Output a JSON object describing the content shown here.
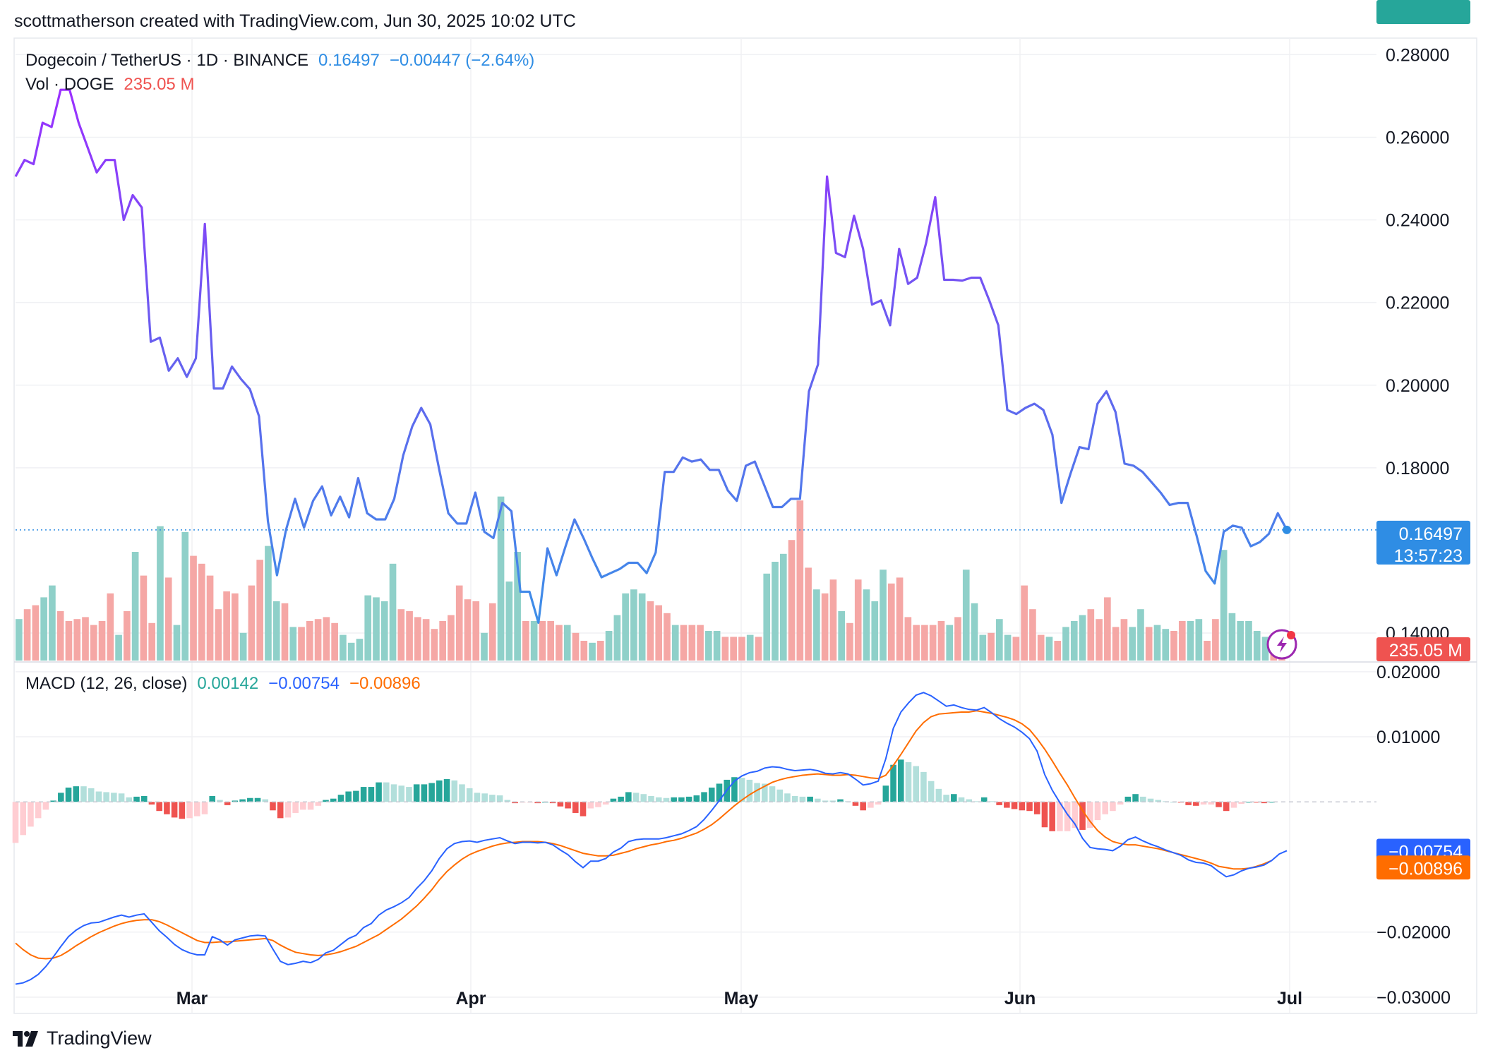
{
  "attribution": "scottmatherson created with TradingView.com, Jun 30, 2025 10:02 UTC",
  "brand": "TradingView",
  "price_legend": {
    "symbol": "Dogecoin / TetherUS · 1D · BINANCE",
    "last": "0.16497",
    "change": "−0.00447 (−2.64%)"
  },
  "volume_legend": {
    "label": "Vol · DOGE",
    "value": "235.05 M"
  },
  "macd_legend": {
    "label": "MACD (12, 26, close)",
    "hist": "0.00142",
    "macd": "−0.00754",
    "signal": "−0.00896"
  },
  "badges": {
    "price": "0.16497",
    "countdown": "13:57:23",
    "volume": "235.05 M",
    "hist": "0.00142",
    "macd": "−0.00754",
    "signal": "−0.00896"
  },
  "colors": {
    "price_high": "#9b30ff",
    "price_low": "#3d8fe8",
    "up": "#26a69a",
    "down": "#ef5350",
    "macd": "#2962ff",
    "signal": "#ff6d00",
    "badge_blue": "#2f8de4",
    "badge_red": "#ef5350"
  },
  "chart_data": {
    "type": "line",
    "title": "Dogecoin / TetherUS · 1D · BINANCE",
    "x_ticks": [
      "Mar",
      "Apr",
      "May",
      "Jun",
      "Jul"
    ],
    "price": {
      "y_ticks": [
        "0.28000",
        "0.26000",
        "0.24000",
        "0.22000",
        "0.20000",
        "0.18000",
        "0.14000"
      ],
      "ylim": [
        0.133,
        0.284
      ],
      "values": [
        0.2505,
        0.2545,
        0.2535,
        0.2635,
        0.2625,
        0.2715,
        0.2715,
        0.2635,
        0.2575,
        0.2515,
        0.2545,
        0.2545,
        0.24,
        0.246,
        0.243,
        0.2105,
        0.2115,
        0.2035,
        0.2065,
        0.202,
        0.2065,
        0.239,
        0.1992,
        0.1992,
        0.2045,
        0.2015,
        0.199,
        0.1925,
        0.167,
        0.154,
        0.165,
        0.1725,
        0.1655,
        0.172,
        0.1755,
        0.1685,
        0.173,
        0.168,
        0.1775,
        0.169,
        0.1675,
        0.1675,
        0.1725,
        0.183,
        0.19,
        0.1945,
        0.1905,
        0.1795,
        0.169,
        0.1665,
        0.1665,
        0.174,
        0.1645,
        0.163,
        0.1715,
        0.1695,
        0.15,
        0.15,
        0.1425,
        0.1605,
        0.154,
        0.161,
        0.1675,
        0.163,
        0.158,
        0.1535,
        0.1545,
        0.1555,
        0.157,
        0.157,
        0.1545,
        0.1595,
        0.179,
        0.179,
        0.1825,
        0.1815,
        0.182,
        0.1795,
        0.1795,
        0.1745,
        0.172,
        0.1805,
        0.1815,
        0.176,
        0.1705,
        0.1705,
        0.1725,
        0.1725,
        0.1985,
        0.205,
        0.2505,
        0.232,
        0.231,
        0.241,
        0.233,
        0.2195,
        0.2205,
        0.2145,
        0.233,
        0.2245,
        0.226,
        0.2345,
        0.2455,
        0.2255,
        0.2255,
        0.2253,
        0.226,
        0.226,
        0.2205,
        0.2145,
        0.194,
        0.193,
        0.1945,
        0.1955,
        0.194,
        0.188,
        0.1715,
        0.1785,
        0.185,
        0.1845,
        0.1955,
        0.1985,
        0.1935,
        0.181,
        0.1805,
        0.179,
        0.1765,
        0.174,
        0.171,
        0.1715,
        0.1715,
        0.1635,
        0.155,
        0.152,
        0.1645,
        0.166,
        0.1655,
        0.161,
        0.162,
        0.164,
        0.169,
        0.165
      ],
      "last": 0.16497
    },
    "volume": {
      "values": [
        2.1,
        2.6,
        2.8,
        3.2,
        3.8,
        2.5,
        2.0,
        2.1,
        2.2,
        1.8,
        2.0,
        3.4,
        1.3,
        2.5,
        5.5,
        4.3,
        1.9,
        6.8,
        4.2,
        1.8,
        6.5,
        5.3,
        4.9,
        4.3,
        2.6,
        3.5,
        3.4,
        1.4,
        3.8,
        5.1,
        5.8,
        3.0,
        2.9,
        1.7,
        1.7,
        2.0,
        2.1,
        2.2,
        1.9,
        1.3,
        0.9,
        1.1,
        3.3,
        3.2,
        3.0,
        4.9,
        2.6,
        2.5,
        2.2,
        2.1,
        1.6,
        2.0,
        2.3,
        3.8,
        3.1,
        3.0,
        1.4,
        2.9,
        8.3,
        4.0,
        5.5,
        2.0,
        2.0,
        2.0,
        2.0,
        1.8,
        1.8,
        1.4,
        1.0,
        0.9,
        1.0,
        1.5,
        2.3,
        3.4,
        3.6,
        3.4,
        3.0,
        2.8,
        2.4,
        1.8,
        1.8,
        1.8,
        1.8,
        1.5,
        1.5,
        1.2,
        1.2,
        1.2,
        1.3,
        1.2,
        4.4,
        5.0,
        5.4,
        6.1,
        8.1,
        4.7,
        3.6,
        3.4,
        4.1,
        2.5,
        1.9,
        4.1,
        3.6,
        3.0,
        4.6,
        3.9,
        4.2,
        2.2,
        1.8,
        1.8,
        1.8,
        2.0,
        1.8,
        2.2,
        4.6,
        2.9,
        1.3,
        1.4,
        2.1,
        1.3,
        1.2,
        3.8,
        2.6,
        1.3,
        1.2,
        1.0,
        1.7,
        2.0,
        2.3,
        2.6,
        2.1,
        3.2,
        1.7,
        2.1,
        1.7,
        2.6,
        1.7,
        1.8,
        1.6,
        1.5,
        2.0,
        2.0,
        2.1,
        1.0,
        2.1,
        5.6,
        2.4,
        2.0,
        2.0,
        1.5,
        1.2,
        0.9,
        0.6
      ],
      "up": [
        1,
        0,
        0,
        1,
        1,
        0,
        0,
        0,
        0,
        0,
        0,
        0,
        1,
        0,
        1,
        0,
        0,
        1,
        0,
        1,
        1,
        0,
        0,
        0,
        0,
        0,
        0,
        1,
        0,
        0,
        1,
        1,
        0,
        1,
        0,
        0,
        0,
        0,
        0,
        1,
        1,
        1,
        1,
        1,
        1,
        1,
        0,
        0,
        0,
        0,
        0,
        0,
        0,
        0,
        0,
        0,
        1,
        0,
        1,
        1,
        1,
        0,
        1,
        0,
        0,
        0,
        1,
        0,
        0,
        1,
        0,
        1,
        1,
        1,
        1,
        1,
        0,
        0,
        0,
        1,
        0,
        0,
        0,
        1,
        1,
        0,
        0,
        0,
        1,
        0,
        1,
        1,
        1,
        0,
        0,
        0,
        1,
        0,
        0,
        1,
        0,
        0,
        1,
        1,
        1,
        0,
        0,
        0,
        0,
        0,
        0,
        0,
        1,
        0,
        1,
        1,
        1,
        0,
        1,
        1,
        0,
        0,
        0,
        0,
        1,
        0,
        1,
        1,
        1,
        0,
        0,
        0,
        0,
        0,
        1,
        1,
        0,
        1,
        1,
        0,
        0,
        1,
        1,
        0,
        0,
        1,
        1,
        1,
        1,
        1,
        1,
        0
      ],
      "unit": "M"
    },
    "macd": {
      "y_ticks": [
        "0.02000",
        "0.01000",
        "−0.02000",
        "−0.03000"
      ],
      "ylim": [
        -0.0325,
        0.0215
      ],
      "macd": [
        -0.028,
        -0.0278,
        -0.0273,
        -0.0265,
        -0.0253,
        -0.0238,
        -0.0222,
        -0.0207,
        -0.0197,
        -0.019,
        -0.0186,
        -0.0185,
        -0.0181,
        -0.0177,
        -0.0174,
        -0.0177,
        -0.0174,
        -0.0172,
        -0.0185,
        -0.0198,
        -0.0208,
        -0.0219,
        -0.0227,
        -0.0232,
        -0.0235,
        -0.0235,
        -0.0207,
        -0.0212,
        -0.022,
        -0.0212,
        -0.0209,
        -0.0206,
        -0.0205,
        -0.0206,
        -0.0226,
        -0.0245,
        -0.025,
        -0.0248,
        -0.0245,
        -0.0247,
        -0.0242,
        -0.0232,
        -0.0228,
        -0.0219,
        -0.021,
        -0.0205,
        -0.0193,
        -0.0187,
        -0.0174,
        -0.0166,
        -0.0161,
        -0.0155,
        -0.0147,
        -0.0133,
        -0.0121,
        -0.0106,
        -0.0087,
        -0.0072,
        -0.0064,
        -0.0061,
        -0.006,
        -0.0062,
        -0.0059,
        -0.0057,
        -0.0055,
        -0.006,
        -0.0064,
        -0.0062,
        -0.0062,
        -0.0063,
        -0.0062,
        -0.0066,
        -0.0074,
        -0.0081,
        -0.0092,
        -0.0101,
        -0.0091,
        -0.0091,
        -0.0087,
        -0.0077,
        -0.0071,
        -0.0061,
        -0.0058,
        -0.0057,
        -0.0057,
        -0.0057,
        -0.0055,
        -0.0052,
        -0.0049,
        -0.0044,
        -0.0038,
        -0.0027,
        -0.0013,
        0.0002,
        0.0018,
        0.0032,
        0.004,
        0.0045,
        0.0047,
        0.0052,
        0.0054,
        0.0053,
        0.005,
        0.0048,
        0.0049,
        0.005,
        0.0048,
        0.0044,
        0.0043,
        0.0045,
        0.0043,
        0.0035,
        0.0026,
        0.0028,
        0.0032,
        0.0066,
        0.0113,
        0.0138,
        0.0152,
        0.0164,
        0.0168,
        0.0163,
        0.0155,
        0.0147,
        0.0149,
        0.0145,
        0.0142,
        0.0141,
        0.0145,
        0.0137,
        0.0128,
        0.0121,
        0.0115,
        0.0107,
        0.0097,
        0.0078,
        0.0042,
        0.0018,
        -0.0001,
        -0.0019,
        -0.0034,
        -0.0056,
        -0.007,
        -0.0072,
        -0.0073,
        -0.0075,
        -0.0068,
        -0.0058,
        -0.0054,
        -0.006,
        -0.0065,
        -0.0069,
        -0.0074,
        -0.0078,
        -0.0082,
        -0.0089,
        -0.0093,
        -0.0094,
        -0.0098,
        -0.0107,
        -0.0115,
        -0.0112,
        -0.0106,
        -0.0102,
        -0.01,
        -0.0097,
        -0.009,
        -0.008,
        -0.0075
      ],
      "signal": [
        -0.0217,
        -0.0227,
        -0.0235,
        -0.024,
        -0.0241,
        -0.024,
        -0.0236,
        -0.0229,
        -0.0221,
        -0.0214,
        -0.0207,
        -0.0201,
        -0.0196,
        -0.0191,
        -0.0187,
        -0.0184,
        -0.0182,
        -0.0181,
        -0.0181,
        -0.0184,
        -0.0189,
        -0.0195,
        -0.0201,
        -0.0207,
        -0.0213,
        -0.0216,
        -0.0216,
        -0.0215,
        -0.0215,
        -0.0214,
        -0.0213,
        -0.0212,
        -0.0211,
        -0.021,
        -0.0213,
        -0.022,
        -0.0226,
        -0.0231,
        -0.0233,
        -0.0235,
        -0.0236,
        -0.0235,
        -0.0233,
        -0.023,
        -0.0226,
        -0.0222,
        -0.0216,
        -0.021,
        -0.0204,
        -0.0196,
        -0.0188,
        -0.018,
        -0.017,
        -0.016,
        -0.0148,
        -0.0135,
        -0.012,
        -0.0107,
        -0.0097,
        -0.0088,
        -0.0081,
        -0.0076,
        -0.0072,
        -0.0068,
        -0.0065,
        -0.0063,
        -0.0062,
        -0.0061,
        -0.0061,
        -0.0061,
        -0.0062,
        -0.0064,
        -0.0067,
        -0.0071,
        -0.0075,
        -0.0079,
        -0.0081,
        -0.0083,
        -0.0083,
        -0.0082,
        -0.0079,
        -0.0076,
        -0.0072,
        -0.0069,
        -0.0066,
        -0.0064,
        -0.0061,
        -0.0059,
        -0.0056,
        -0.0052,
        -0.0048,
        -0.0042,
        -0.0035,
        -0.0026,
        -0.0016,
        -0.0006,
        0.0003,
        0.0011,
        0.0018,
        0.0024,
        0.003,
        0.0034,
        0.0037,
        0.0039,
        0.0041,
        0.0042,
        0.0043,
        0.0042,
        0.0041,
        0.0041,
        0.0042,
        0.0041,
        0.0039,
        0.0037,
        0.0036,
        0.0041,
        0.0056,
        0.0073,
        0.0091,
        0.0109,
        0.0122,
        0.0131,
        0.0135,
        0.0136,
        0.0137,
        0.0138,
        0.0138,
        0.014,
        0.0138,
        0.0136,
        0.0133,
        0.013,
        0.0126,
        0.012,
        0.0111,
        0.0097,
        0.0081,
        0.0063,
        0.0044,
        0.0026,
        0.0006,
        -0.0013,
        -0.003,
        -0.0044,
        -0.0054,
        -0.0061,
        -0.0064,
        -0.0066,
        -0.0066,
        -0.0068,
        -0.007,
        -0.0072,
        -0.0075,
        -0.0078,
        -0.0081,
        -0.0084,
        -0.0087,
        -0.009,
        -0.0094,
        -0.0099,
        -0.0101,
        -0.0103,
        -0.0103,
        -0.0102,
        -0.0099,
        -0.0095,
        -0.009
      ]
    }
  }
}
